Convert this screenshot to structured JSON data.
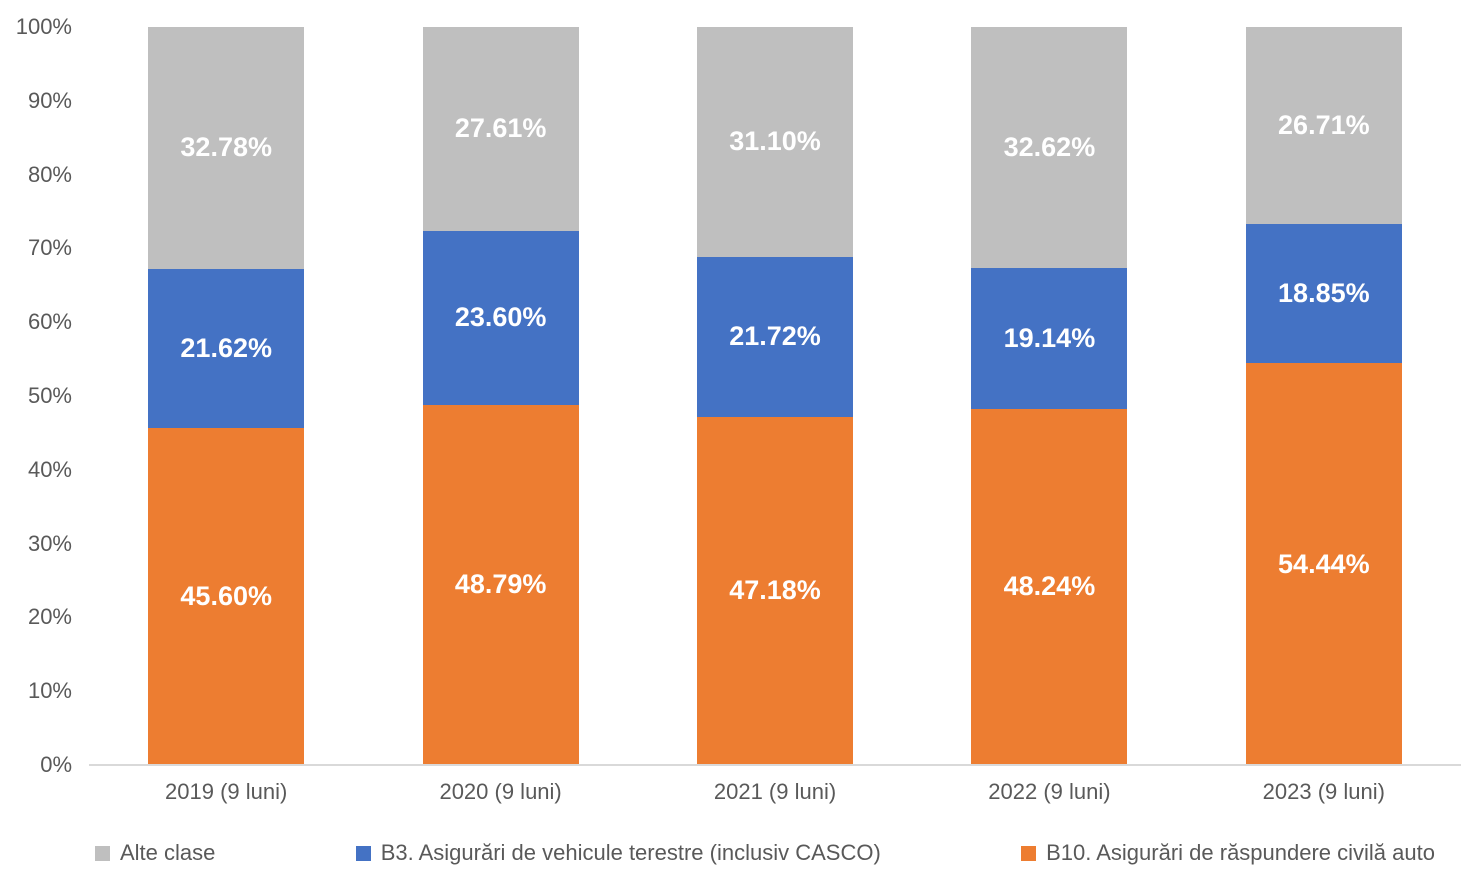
{
  "chart_data": {
    "type": "bar",
    "variant": "100-percent-stacked-column",
    "title": "",
    "xlabel": "",
    "ylabel": "",
    "grid": false,
    "ylim": [
      0,
      100
    ],
    "yticks": [
      "0%",
      "10%",
      "20%",
      "30%",
      "40%",
      "50%",
      "60%",
      "70%",
      "80%",
      "90%",
      "100%"
    ],
    "categories": [
      "2019 (9 luni)",
      "2020 (9 luni)",
      "2021 (9 luni)",
      "2022 (9 luni)",
      "2023 (9 luni)"
    ],
    "series": [
      {
        "name": "B10. Asigurări de răspundere civilă auto",
        "color": "#ED7D31",
        "values": [
          45.6,
          48.79,
          47.18,
          48.24,
          54.44
        ]
      },
      {
        "name": "B3. Asigurări de vehicule terestre (inclusiv CASCO)",
        "color": "#4472C4",
        "values": [
          21.62,
          23.6,
          21.72,
          19.14,
          18.85
        ]
      },
      {
        "name": "Alte clase",
        "color": "#BFBFBF",
        "values": [
          32.78,
          27.61,
          31.1,
          32.62,
          26.71
        ]
      }
    ],
    "data_label_suffix": "%",
    "legend_position": "bottom",
    "legend": [
      {
        "label": "Alte clase",
        "color": "#BFBFBF"
      },
      {
        "label": "B3. Asigurări de vehicule terestre (inclusiv CASCO)",
        "color": "#4472C4"
      },
      {
        "label": "B10. Asigurări de răspundere civilă auto",
        "color": "#ED7D31"
      }
    ],
    "colors": {
      "axis_text": "#595959",
      "axis_line": "#D9D9D9",
      "data_label_text": "#FFFFFF",
      "background": "#FFFFFF"
    }
  }
}
